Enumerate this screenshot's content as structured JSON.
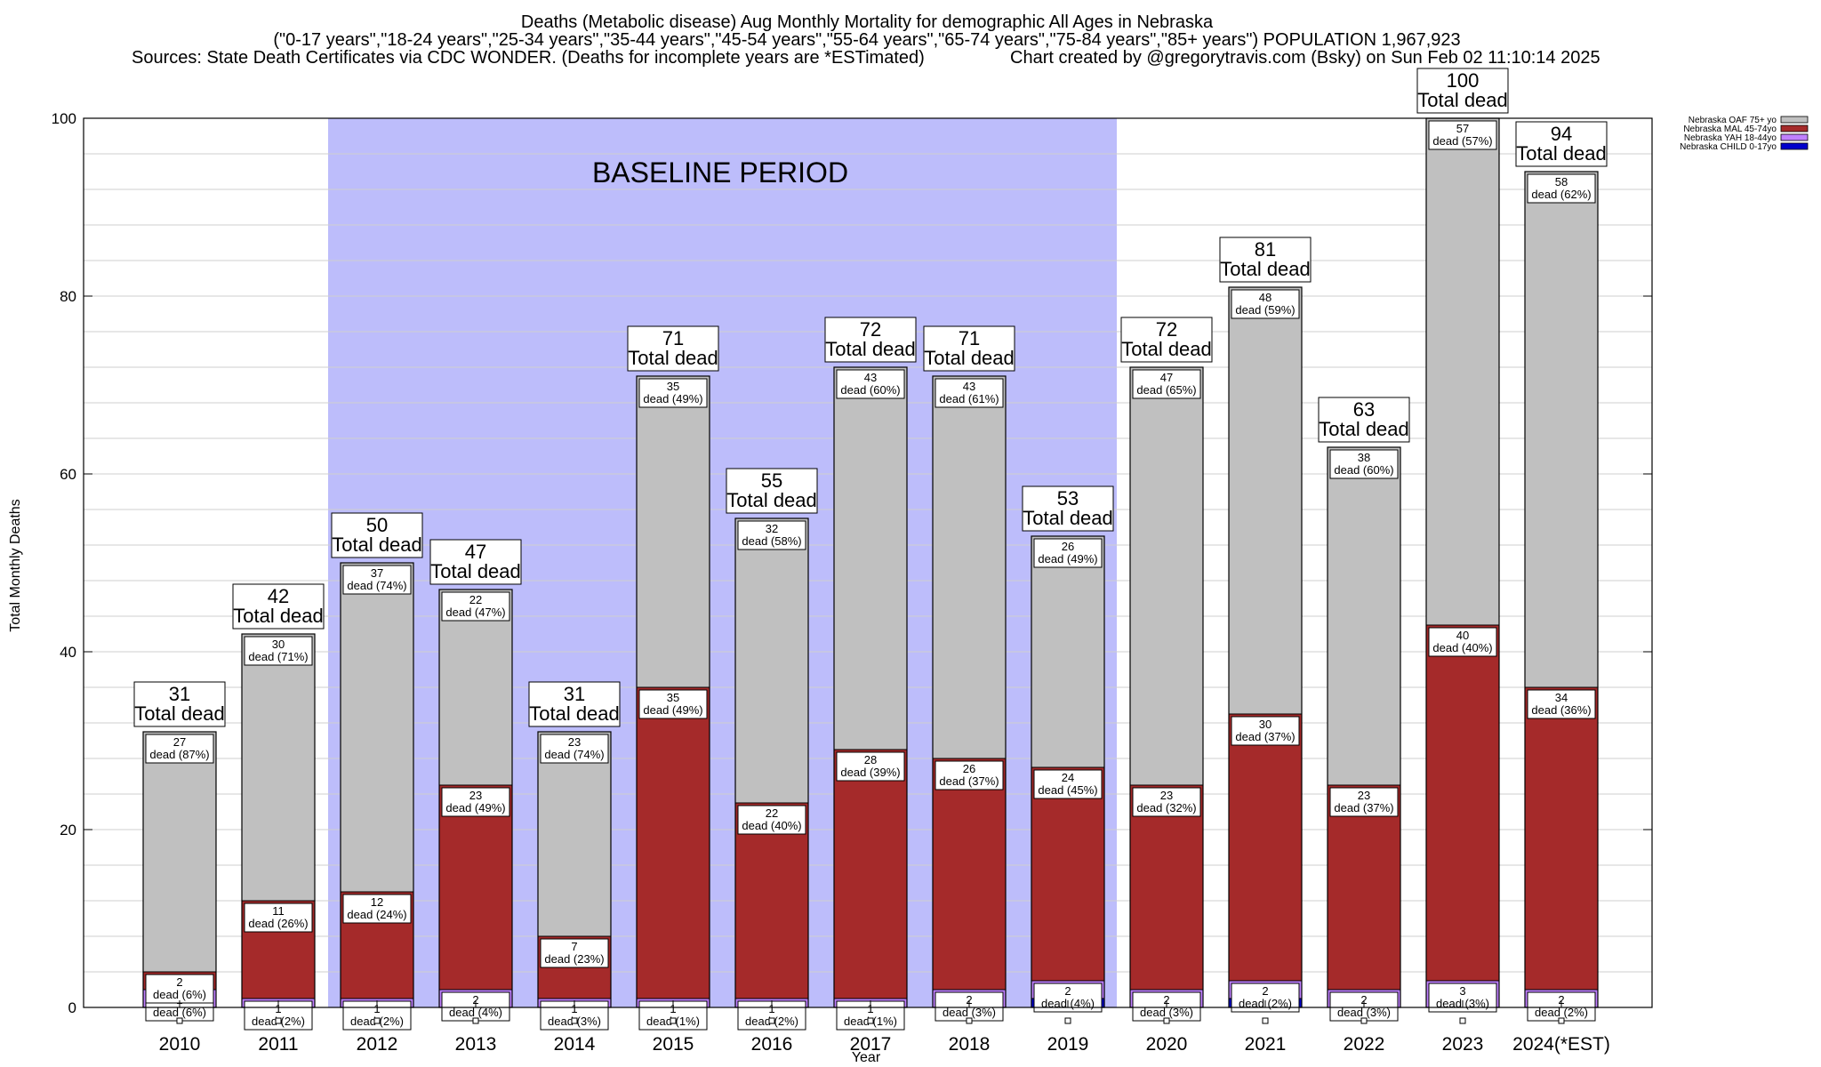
{
  "title": {
    "line1": "Deaths (Metabolic disease) Aug Monthly Mortality for demographic All Ages in Nebraska",
    "line2": "(\"0-17 years\",\"18-24 years\",\"25-34 years\",\"35-44 years\",\"45-54 years\",\"55-64 years\",\"65-74 years\",\"75-84 years\",\"85+ years\") POPULATION 1,967,923",
    "line3_left": "Sources: State Death Certificates via CDC WONDER. (Deaths for incomplete years are *ESTimated)",
    "line3_right": "Chart created by @gregorytravis.com (Bsky) on Sun Feb 02 11:10:14 2025"
  },
  "baseline_label": "BASELINE PERIOD",
  "total_label": "Total dead",
  "dead_word": "dead",
  "colors": {
    "baseline": "#bdbdfb",
    "oaf": "#c0c0c0",
    "mal": "#a52a2a",
    "yah": "#c080ff",
    "child": "#0000cc"
  },
  "chart_data": {
    "type": "bar",
    "stacked": true,
    "xlabel": "Year",
    "ylabel": "Total Monthly Deaths",
    "ylim": [
      0,
      100
    ],
    "yticks": [
      0,
      20,
      40,
      60,
      80,
      100
    ],
    "grid": true,
    "baseline_period": [
      "2012",
      "2019"
    ],
    "categories": [
      "2010",
      "2011",
      "2012",
      "2013",
      "2014",
      "2015",
      "2016",
      "2017",
      "2018",
      "2019",
      "2020",
      "2021",
      "2022",
      "2023",
      "2024(*EST)"
    ],
    "totals": [
      31,
      42,
      50,
      47,
      31,
      71,
      55,
      72,
      71,
      53,
      72,
      81,
      63,
      100,
      94
    ],
    "legend_position": "top-right",
    "series": [
      {
        "name": "Nebraska CHILD 0-17yo",
        "key": "child",
        "values": [
          0,
          0,
          0,
          0,
          0,
          0,
          0,
          0,
          0,
          1,
          0,
          1,
          0,
          0,
          0
        ],
        "labels": [
          null,
          null,
          null,
          null,
          null,
          null,
          null,
          null,
          null,
          null,
          null,
          null,
          null,
          null,
          null
        ]
      },
      {
        "name": "Nebraska YAH 18-44yo",
        "key": "yah",
        "values": [
          2,
          1,
          1,
          2,
          1,
          1,
          1,
          1,
          2,
          2,
          2,
          2,
          2,
          3,
          2
        ],
        "labels": [
          {
            "n": "2",
            "pct": "(6%)"
          },
          {
            "n": "1",
            "pct": "(2%)"
          },
          {
            "n": "1",
            "pct": "(2%)"
          },
          {
            "n": "2",
            "pct": "(4%)"
          },
          {
            "n": "1",
            "pct": "(3%)"
          },
          {
            "n": "1",
            "pct": "(1%)"
          },
          {
            "n": "1",
            "pct": "(2%)"
          },
          {
            "n": "1",
            "pct": "(1%)"
          },
          {
            "n": "2",
            "pct": "(3%)"
          },
          {
            "n": "2",
            "pct": "(4%)"
          },
          {
            "n": "2",
            "pct": "(3%)"
          },
          {
            "n": "2",
            "pct": "(2%)"
          },
          {
            "n": "2",
            "pct": "(3%)"
          },
          {
            "n": "3",
            "pct": "(3%)"
          },
          {
            "n": "2",
            "pct": "(2%)"
          }
        ]
      },
      {
        "name": "Nebraska MAL 45-74yo",
        "key": "mal",
        "values": [
          2,
          11,
          12,
          23,
          7,
          35,
          22,
          28,
          26,
          24,
          23,
          30,
          23,
          40,
          34
        ],
        "labels": [
          {
            "n": "2",
            "pct": "(6%)"
          },
          {
            "n": "11",
            "pct": "(26%)"
          },
          {
            "n": "12",
            "pct": "(24%)"
          },
          {
            "n": "23",
            "pct": "(49%)"
          },
          {
            "n": "7",
            "pct": "(23%)"
          },
          {
            "n": "35",
            "pct": "(49%)"
          },
          {
            "n": "22",
            "pct": "(40%)"
          },
          {
            "n": "28",
            "pct": "(39%)"
          },
          {
            "n": "26",
            "pct": "(37%)"
          },
          {
            "n": "24",
            "pct": "(45%)"
          },
          {
            "n": "23",
            "pct": "(32%)"
          },
          {
            "n": "30",
            "pct": "(37%)"
          },
          {
            "n": "23",
            "pct": "(37%)"
          },
          {
            "n": "40",
            "pct": "(40%)"
          },
          {
            "n": "34",
            "pct": "(36%)"
          }
        ]
      },
      {
        "name": "Nebraska OAF 75+ yo",
        "key": "oaf",
        "values": [
          27,
          30,
          37,
          22,
          23,
          35,
          32,
          43,
          43,
          26,
          47,
          48,
          38,
          57,
          58
        ],
        "labels": [
          {
            "n": "27",
            "pct": "(87%)"
          },
          {
            "n": "30",
            "pct": "(71%)"
          },
          {
            "n": "37",
            "pct": "(74%)"
          },
          {
            "n": "22",
            "pct": "(47%)"
          },
          {
            "n": "23",
            "pct": "(74%)"
          },
          {
            "n": "35",
            "pct": "(49%)"
          },
          {
            "n": "32",
            "pct": "(58%)"
          },
          {
            "n": "43",
            "pct": "(60%)"
          },
          {
            "n": "43",
            "pct": "(61%)"
          },
          {
            "n": "26",
            "pct": "(49%)"
          },
          {
            "n": "47",
            "pct": "(65%)"
          },
          {
            "n": "48",
            "pct": "(59%)"
          },
          {
            "n": "38",
            "pct": "(60%)"
          },
          {
            "n": "57",
            "pct": "(57%)"
          },
          {
            "n": "58",
            "pct": "(62%)"
          }
        ]
      }
    ]
  }
}
